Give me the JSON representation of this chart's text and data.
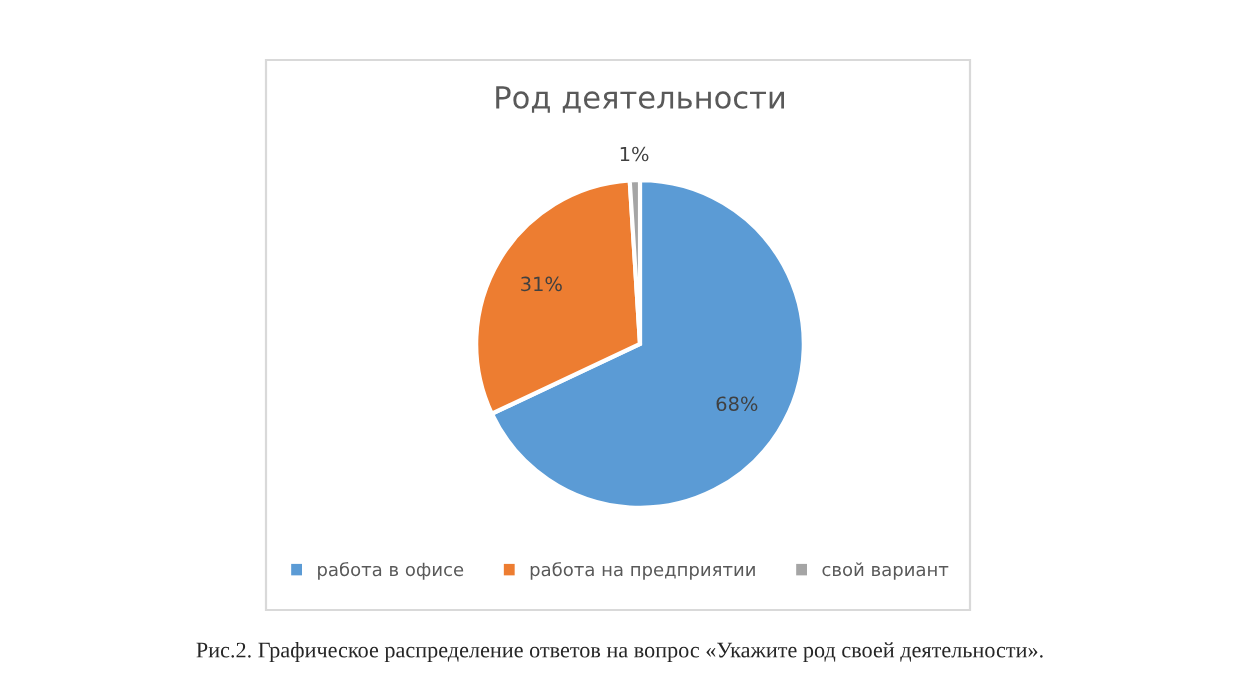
{
  "chart_data": {
    "type": "pie",
    "title": "Род деятельности",
    "categories": [
      "работа в офисе",
      "работа на предприятии",
      "свой вариант"
    ],
    "values": [
      68,
      31,
      1
    ],
    "colors": [
      "#5b9bd5",
      "#ed7d31",
      "#a5a5a5"
    ],
    "value_labels": [
      "68%",
      "31%",
      "1%"
    ],
    "legend": "bottom",
    "annotations": [
      "Рис.2. Графическое распределение ответов на вопрос «Укажите род своей деятельности»."
    ]
  }
}
